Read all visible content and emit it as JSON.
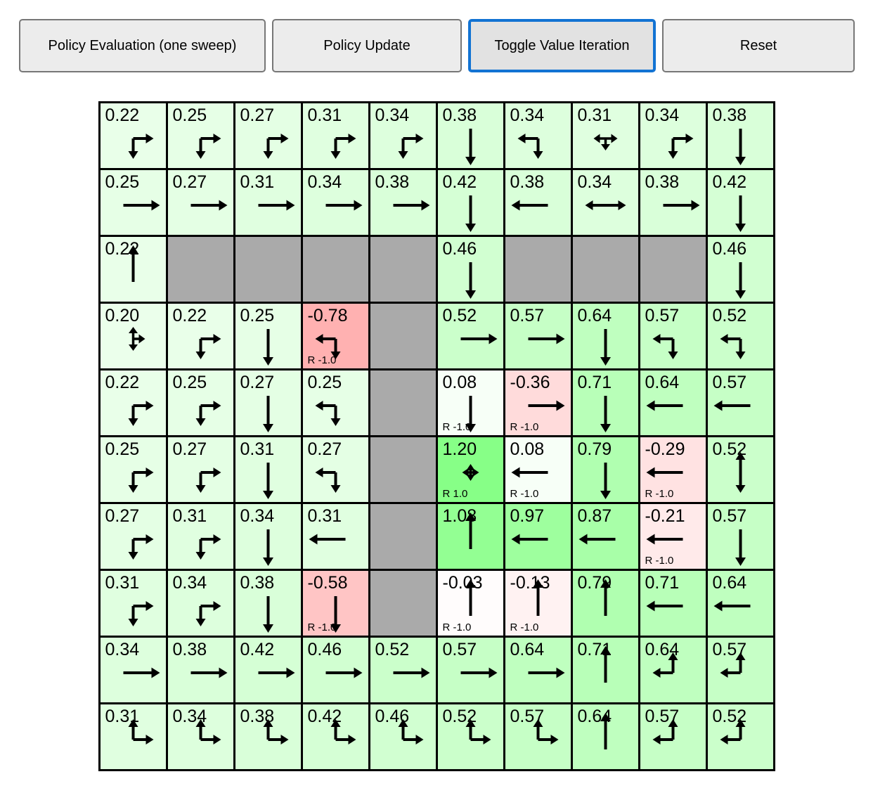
{
  "toolbar": {
    "buttons": [
      {
        "label": "Policy Evaluation (one sweep)",
        "active": false
      },
      {
        "label": "Policy Update",
        "active": false
      },
      {
        "label": "Toggle Value Iteration",
        "active": true
      },
      {
        "label": "Reset",
        "active": false
      }
    ]
  },
  "colors": {
    "accent_blue": "#1273d3",
    "button_bg": "#ececec",
    "button_border": "#777777",
    "active_button_bg": "#e2e2e2",
    "wall": "#aaaaaa",
    "grid_line": "#000000",
    "arrow": "#000000",
    "text": "#000000",
    "positive_cell_scale": "white-to-green rgb(255-100v,255,255-100v)",
    "negative_cell_scale": "white-to-red rgb(255,255+100v,255+100v)"
  },
  "grid": {
    "n_rows": 10,
    "n_cols": 10,
    "legend": {
      "a": "policy arrow directions u/d/l/r",
      "v": "state value",
      "rw": "reward label"
    },
    "rows": [
      [
        {
          "v": "0.22",
          "a": [
            "d",
            "r"
          ]
        },
        {
          "v": "0.25",
          "a": [
            "d",
            "r"
          ]
        },
        {
          "v": "0.27",
          "a": [
            "d",
            "r"
          ]
        },
        {
          "v": "0.31",
          "a": [
            "d",
            "r"
          ]
        },
        {
          "v": "0.34",
          "a": [
            "d",
            "r"
          ]
        },
        {
          "v": "0.38",
          "a": [
            "d"
          ]
        },
        {
          "v": "0.34",
          "a": [
            "l",
            "d"
          ]
        },
        {
          "v": "0.31",
          "a": [
            "l",
            "r",
            "d"
          ]
        },
        {
          "v": "0.34",
          "a": [
            "d",
            "r"
          ]
        },
        {
          "v": "0.38",
          "a": [
            "d"
          ]
        }
      ],
      [
        {
          "v": "0.25",
          "a": [
            "r"
          ]
        },
        {
          "v": "0.27",
          "a": [
            "r"
          ]
        },
        {
          "v": "0.31",
          "a": [
            "r"
          ]
        },
        {
          "v": "0.34",
          "a": [
            "r"
          ]
        },
        {
          "v": "0.38",
          "a": [
            "r"
          ]
        },
        {
          "v": "0.42",
          "a": [
            "d"
          ]
        },
        {
          "v": "0.38",
          "a": [
            "l"
          ]
        },
        {
          "v": "0.34",
          "a": [
            "l",
            "r"
          ]
        },
        {
          "v": "0.38",
          "a": [
            "r"
          ]
        },
        {
          "v": "0.42",
          "a": [
            "d"
          ]
        }
      ],
      [
        {
          "v": "0.22",
          "a": [
            "u"
          ]
        },
        {
          "wall": true
        },
        {
          "wall": true
        },
        {
          "wall": true
        },
        {
          "wall": true
        },
        {
          "v": "0.46",
          "a": [
            "d"
          ]
        },
        {
          "wall": true
        },
        {
          "wall": true
        },
        {
          "wall": true
        },
        {
          "v": "0.46",
          "a": [
            "d"
          ]
        }
      ],
      [
        {
          "v": "0.20",
          "a": [
            "u",
            "d",
            "r"
          ]
        },
        {
          "v": "0.22",
          "a": [
            "d",
            "r"
          ]
        },
        {
          "v": "0.25",
          "a": [
            "d"
          ]
        },
        {
          "v": "-0.78",
          "a": [
            "l",
            "d"
          ],
          "rw": "R -1.0"
        },
        {
          "wall": true
        },
        {
          "v": "0.52",
          "a": [
            "r"
          ]
        },
        {
          "v": "0.57",
          "a": [
            "r"
          ]
        },
        {
          "v": "0.64",
          "a": [
            "d"
          ]
        },
        {
          "v": "0.57",
          "a": [
            "l",
            "d"
          ]
        },
        {
          "v": "0.52",
          "a": [
            "l",
            "d"
          ]
        }
      ],
      [
        {
          "v": "0.22",
          "a": [
            "d",
            "r"
          ]
        },
        {
          "v": "0.25",
          "a": [
            "d",
            "r"
          ]
        },
        {
          "v": "0.27",
          "a": [
            "d"
          ]
        },
        {
          "v": "0.25",
          "a": [
            "l",
            "d"
          ]
        },
        {
          "wall": true
        },
        {
          "v": "0.08",
          "a": [
            "d"
          ],
          "rw": "R -1.0"
        },
        {
          "v": "-0.36",
          "a": [
            "r"
          ],
          "rw": "R -1.0"
        },
        {
          "v": "0.71",
          "a": [
            "d"
          ]
        },
        {
          "v": "0.64",
          "a": [
            "l"
          ]
        },
        {
          "v": "0.57",
          "a": [
            "l"
          ]
        }
      ],
      [
        {
          "v": "0.25",
          "a": [
            "d",
            "r"
          ]
        },
        {
          "v": "0.27",
          "a": [
            "d",
            "r"
          ]
        },
        {
          "v": "0.31",
          "a": [
            "d"
          ]
        },
        {
          "v": "0.27",
          "a": [
            "l",
            "d"
          ]
        },
        {
          "wall": true
        },
        {
          "v": "1.20",
          "a": [
            "u",
            "d",
            "l",
            "r"
          ],
          "rw": "R 1.0"
        },
        {
          "v": "0.08",
          "a": [
            "l"
          ],
          "rw": "R -1.0"
        },
        {
          "v": "0.79",
          "a": [
            "d"
          ]
        },
        {
          "v": "-0.29",
          "a": [
            "l"
          ],
          "rw": "R -1.0"
        },
        {
          "v": "0.52",
          "a": [
            "u",
            "d"
          ]
        }
      ],
      [
        {
          "v": "0.27",
          "a": [
            "d",
            "r"
          ]
        },
        {
          "v": "0.31",
          "a": [
            "d",
            "r"
          ]
        },
        {
          "v": "0.34",
          "a": [
            "d"
          ]
        },
        {
          "v": "0.31",
          "a": [
            "l"
          ]
        },
        {
          "wall": true
        },
        {
          "v": "1.08",
          "a": [
            "u"
          ]
        },
        {
          "v": "0.97",
          "a": [
            "l"
          ]
        },
        {
          "v": "0.87",
          "a": [
            "l"
          ]
        },
        {
          "v": "-0.21",
          "a": [
            "l"
          ],
          "rw": "R -1.0"
        },
        {
          "v": "0.57",
          "a": [
            "d"
          ]
        }
      ],
      [
        {
          "v": "0.31",
          "a": [
            "d",
            "r"
          ]
        },
        {
          "v": "0.34",
          "a": [
            "d",
            "r"
          ]
        },
        {
          "v": "0.38",
          "a": [
            "d"
          ]
        },
        {
          "v": "-0.58",
          "a": [
            "d"
          ],
          "rw": "R -1.0"
        },
        {
          "wall": true
        },
        {
          "v": "-0.03",
          "a": [
            "u"
          ],
          "rw": "R -1.0"
        },
        {
          "v": "-0.13",
          "a": [
            "u"
          ],
          "rw": "R -1.0"
        },
        {
          "v": "0.79",
          "a": [
            "u"
          ]
        },
        {
          "v": "0.71",
          "a": [
            "l"
          ]
        },
        {
          "v": "0.64",
          "a": [
            "l"
          ]
        }
      ],
      [
        {
          "v": "0.34",
          "a": [
            "r"
          ]
        },
        {
          "v": "0.38",
          "a": [
            "r"
          ]
        },
        {
          "v": "0.42",
          "a": [
            "r"
          ]
        },
        {
          "v": "0.46",
          "a": [
            "r"
          ]
        },
        {
          "v": "0.52",
          "a": [
            "r"
          ]
        },
        {
          "v": "0.57",
          "a": [
            "r"
          ]
        },
        {
          "v": "0.64",
          "a": [
            "r"
          ]
        },
        {
          "v": "0.71",
          "a": [
            "u"
          ]
        },
        {
          "v": "0.64",
          "a": [
            "u",
            "l"
          ]
        },
        {
          "v": "0.57",
          "a": [
            "u",
            "l"
          ]
        }
      ],
      [
        {
          "v": "0.31",
          "a": [
            "u",
            "r"
          ]
        },
        {
          "v": "0.34",
          "a": [
            "u",
            "r"
          ]
        },
        {
          "v": "0.38",
          "a": [
            "u",
            "r"
          ]
        },
        {
          "v": "0.42",
          "a": [
            "u",
            "r"
          ]
        },
        {
          "v": "0.46",
          "a": [
            "u",
            "r"
          ]
        },
        {
          "v": "0.52",
          "a": [
            "u",
            "r"
          ]
        },
        {
          "v": "0.57",
          "a": [
            "u",
            "r"
          ]
        },
        {
          "v": "0.64",
          "a": [
            "u"
          ]
        },
        {
          "v": "0.57",
          "a": [
            "u",
            "l"
          ]
        },
        {
          "v": "0.52",
          "a": [
            "u",
            "l"
          ]
        }
      ]
    ]
  }
}
